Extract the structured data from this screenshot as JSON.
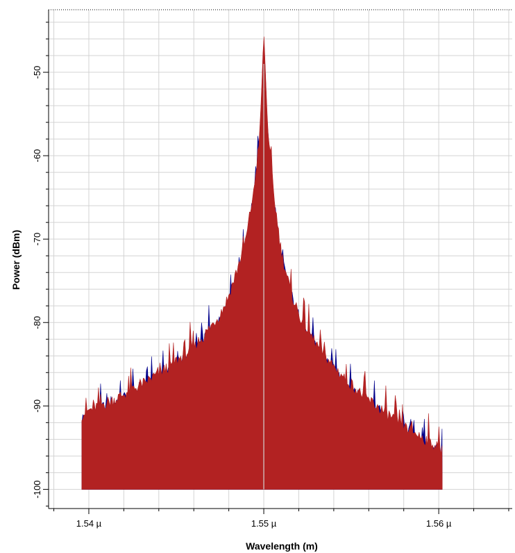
{
  "chart_data": {
    "type": "area",
    "xlabel": "Wavelength (m)",
    "ylabel": "Power (dBm)",
    "xlim": [
      1.5377,
      1.5642
    ],
    "ylim": [
      -102.3,
      -42.5
    ],
    "x_ticks": [
      {
        "value": 1.54,
        "label": "1.54 µ"
      },
      {
        "value": 1.55,
        "label": "1.55 µ"
      },
      {
        "value": 1.56,
        "label": "1.56 µ"
      }
    ],
    "y_ticks": [
      {
        "value": -50,
        "label": "-50"
      },
      {
        "value": -60,
        "label": "-60"
      },
      {
        "value": -70,
        "label": "-70"
      },
      {
        "value": -80,
        "label": "-80"
      },
      {
        "value": -90,
        "label": "-90"
      },
      {
        "value": -100,
        "label": "-100"
      }
    ],
    "grid": true,
    "baseline": -100,
    "series": [
      {
        "color": "#00008B",
        "x": [
          1.5396,
          1.5405,
          1.5415,
          1.5425,
          1.5435,
          1.5445,
          1.5455,
          1.5465,
          1.5475,
          1.548,
          1.5485,
          1.549,
          1.5495,
          1.5498,
          1.55,
          1.5502,
          1.5505,
          1.551,
          1.5515,
          1.552,
          1.553,
          1.554,
          1.555,
          1.556,
          1.557,
          1.558,
          1.559,
          1.5602
        ],
        "values": [
          -91.5,
          -90.5,
          -89.5,
          -88.5,
          -87.2,
          -85.8,
          -84.3,
          -82.2,
          -79.5,
          -77.2,
          -74.0,
          -70.2,
          -63.5,
          -57.0,
          -45.5,
          -56.0,
          -64.0,
          -72.0,
          -76.5,
          -79.5,
          -83.0,
          -85.7,
          -87.8,
          -89.7,
          -91.2,
          -92.6,
          -94.0,
          -95.5
        ]
      },
      {
        "color": "#B22222",
        "x": [
          1.5396,
          1.5405,
          1.5415,
          1.5425,
          1.5435,
          1.5445,
          1.5455,
          1.5465,
          1.5475,
          1.548,
          1.5485,
          1.549,
          1.5495,
          1.5498,
          1.55,
          1.5502,
          1.5505,
          1.551,
          1.5515,
          1.552,
          1.553,
          1.554,
          1.555,
          1.556,
          1.557,
          1.558,
          1.559,
          1.5602
        ],
        "values": [
          -91.0,
          -90.0,
          -89.2,
          -88.0,
          -86.8,
          -85.4,
          -83.8,
          -81.8,
          -79.0,
          -76.8,
          -73.5,
          -69.8,
          -63.0,
          -56.5,
          -45.0,
          -55.5,
          -63.5,
          -71.5,
          -76.0,
          -79.0,
          -82.6,
          -85.3,
          -87.4,
          -89.3,
          -90.9,
          -92.3,
          -93.7,
          -95.2
        ]
      }
    ]
  },
  "colors": {
    "fill": "#00008B",
    "peak_edge": "#B22222",
    "grid": "#D3D3D3",
    "marker_line": "#D3D3D3"
  }
}
